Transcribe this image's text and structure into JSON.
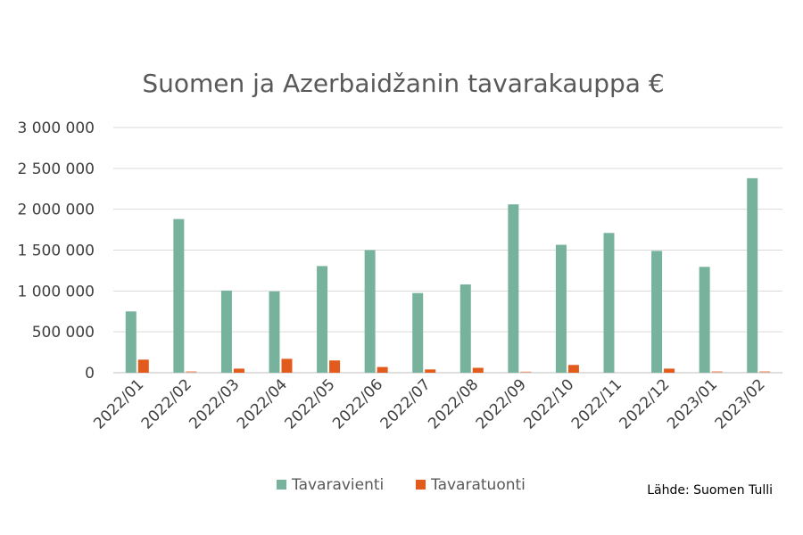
{
  "chart_data": {
    "type": "bar",
    "title": "Suomen ja Azerbaidžanin tavarakauppa €",
    "categories": [
      "2022/01",
      "2022/02",
      "2022/03",
      "2022/04",
      "2022/05",
      "2022/06",
      "2022/07",
      "2022/08",
      "2022/09",
      "2022/10",
      "2022/11",
      "2022/12",
      "2023/01",
      "2023/02"
    ],
    "series": [
      {
        "name": "Tavaravienti",
        "color": "#77b39c",
        "values": [
          750000,
          1880000,
          1005000,
          995000,
          1305000,
          1500000,
          975000,
          1080000,
          2060000,
          1565000,
          1710000,
          1490000,
          1295000,
          2380000
        ]
      },
      {
        "name": "Tavaratuonti",
        "color": "#e35b1c",
        "values": [
          160000,
          20000,
          50000,
          170000,
          150000,
          70000,
          40000,
          60000,
          15000,
          95000,
          0,
          50000,
          20000,
          20000
        ]
      }
    ],
    "ylim": [
      0,
      3000000
    ],
    "yticks": [
      0,
      500000,
      1000000,
      1500000,
      2000000,
      2500000,
      3000000
    ],
    "ytick_labels": [
      "0",
      "500 000",
      "1 000 000",
      "1 500 000",
      "2 000 000",
      "2 500 000",
      "3 000 000"
    ],
    "grid": true,
    "legend_position": "bottom",
    "source_note": "Lähde: Suomen Tulli"
  }
}
